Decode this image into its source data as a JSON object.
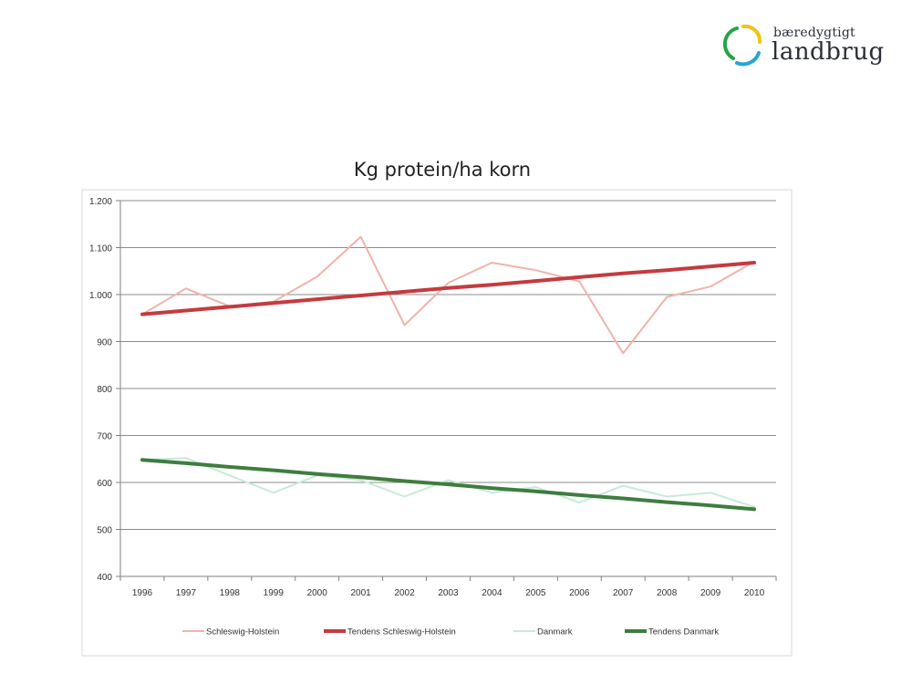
{
  "logo": {
    "line1": "bæredygtigt",
    "line2": "landbrug"
  },
  "chart_data": {
    "type": "line",
    "title": "Kg protein/ha korn",
    "xlabel": "",
    "ylabel": "",
    "categories": [
      "1996",
      "1997",
      "1998",
      "1999",
      "2000",
      "2001",
      "2002",
      "2003",
      "2004",
      "2005",
      "2006",
      "2007",
      "2008",
      "2009",
      "2010"
    ],
    "yticks": [
      "400",
      "500",
      "600",
      "700",
      "800",
      "900",
      "1.000",
      "1.100",
      "1.200"
    ],
    "ylim": [
      400,
      1200
    ],
    "grid": true,
    "legend_position": "bottom",
    "series": [
      {
        "name": "Schleswig-Holstein",
        "color": "#f0b3ac",
        "width": 2,
        "values": [
          958,
          1013,
          975,
          985,
          1038,
          1123,
          935,
          1025,
          1068,
          1052,
          1028,
          875,
          995,
          1017,
          1070
        ]
      },
      {
        "name": "Tendens Schleswig-Holstein",
        "color": "#c43b3f",
        "width": 4,
        "values": [
          958,
          966,
          974,
          982,
          990,
          998,
          1006,
          1014,
          1021,
          1029,
          1037,
          1045,
          1052,
          1060,
          1068
        ]
      },
      {
        "name": "Danmark",
        "color": "#c8ead8",
        "width": 2,
        "values": [
          648,
          652,
          615,
          578,
          615,
          605,
          570,
          605,
          578,
          590,
          557,
          593,
          570,
          578,
          548
        ]
      },
      {
        "name": "Tendens Danmark",
        "color": "#3e7d3f",
        "width": 4,
        "values": [
          648,
          641,
          633,
          626,
          618,
          611,
          603,
          596,
          588,
          581,
          573,
          566,
          558,
          551,
          543
        ]
      }
    ]
  }
}
